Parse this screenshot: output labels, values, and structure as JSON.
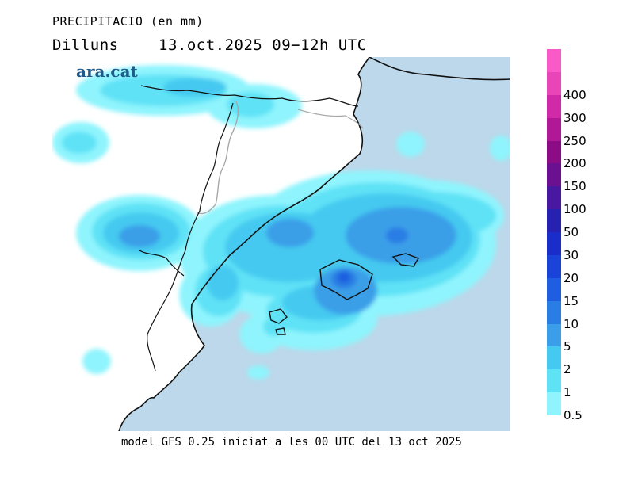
{
  "header": {
    "title": "PRECIPITACIO (en mm)",
    "day": "Dilluns",
    "datetime": "13.oct.2025  09−12h  UTC"
  },
  "brand": "ara.cat",
  "caption": "model GFS 0.25 iniciat a les 00 UTC del 13 oct 2025",
  "colors": {
    "sea": "#bcd8ea",
    "land": "#ffffff",
    "coast": "#111111",
    "border": "#a8a8a8"
  },
  "legend": {
    "unit": "mm",
    "levels": [
      {
        "label": "0.5",
        "color": "#8ff4fd"
      },
      {
        "label": "1",
        "color": "#5fe2f6"
      },
      {
        "label": "2",
        "color": "#45c9f0"
      },
      {
        "label": "5",
        "color": "#3a9fe8"
      },
      {
        "label": "10",
        "color": "#2a7de4"
      },
      {
        "label": "15",
        "color": "#1f5ee0"
      },
      {
        "label": "20",
        "color": "#1a43d8"
      },
      {
        "label": "30",
        "color": "#1a2dc8"
      },
      {
        "label": "50",
        "color": "#2621b0"
      },
      {
        "label": "100",
        "color": "#4818a0"
      },
      {
        "label": "150",
        "color": "#6a1090"
      },
      {
        "label": "200",
        "color": "#8c0c88"
      },
      {
        "label": "250",
        "color": "#b01898"
      },
      {
        "label": "300",
        "color": "#d02aa8"
      },
      {
        "label": "400",
        "color": "#e846b8"
      },
      {
        "label": "",
        "color": "#fa5ac8"
      }
    ]
  }
}
